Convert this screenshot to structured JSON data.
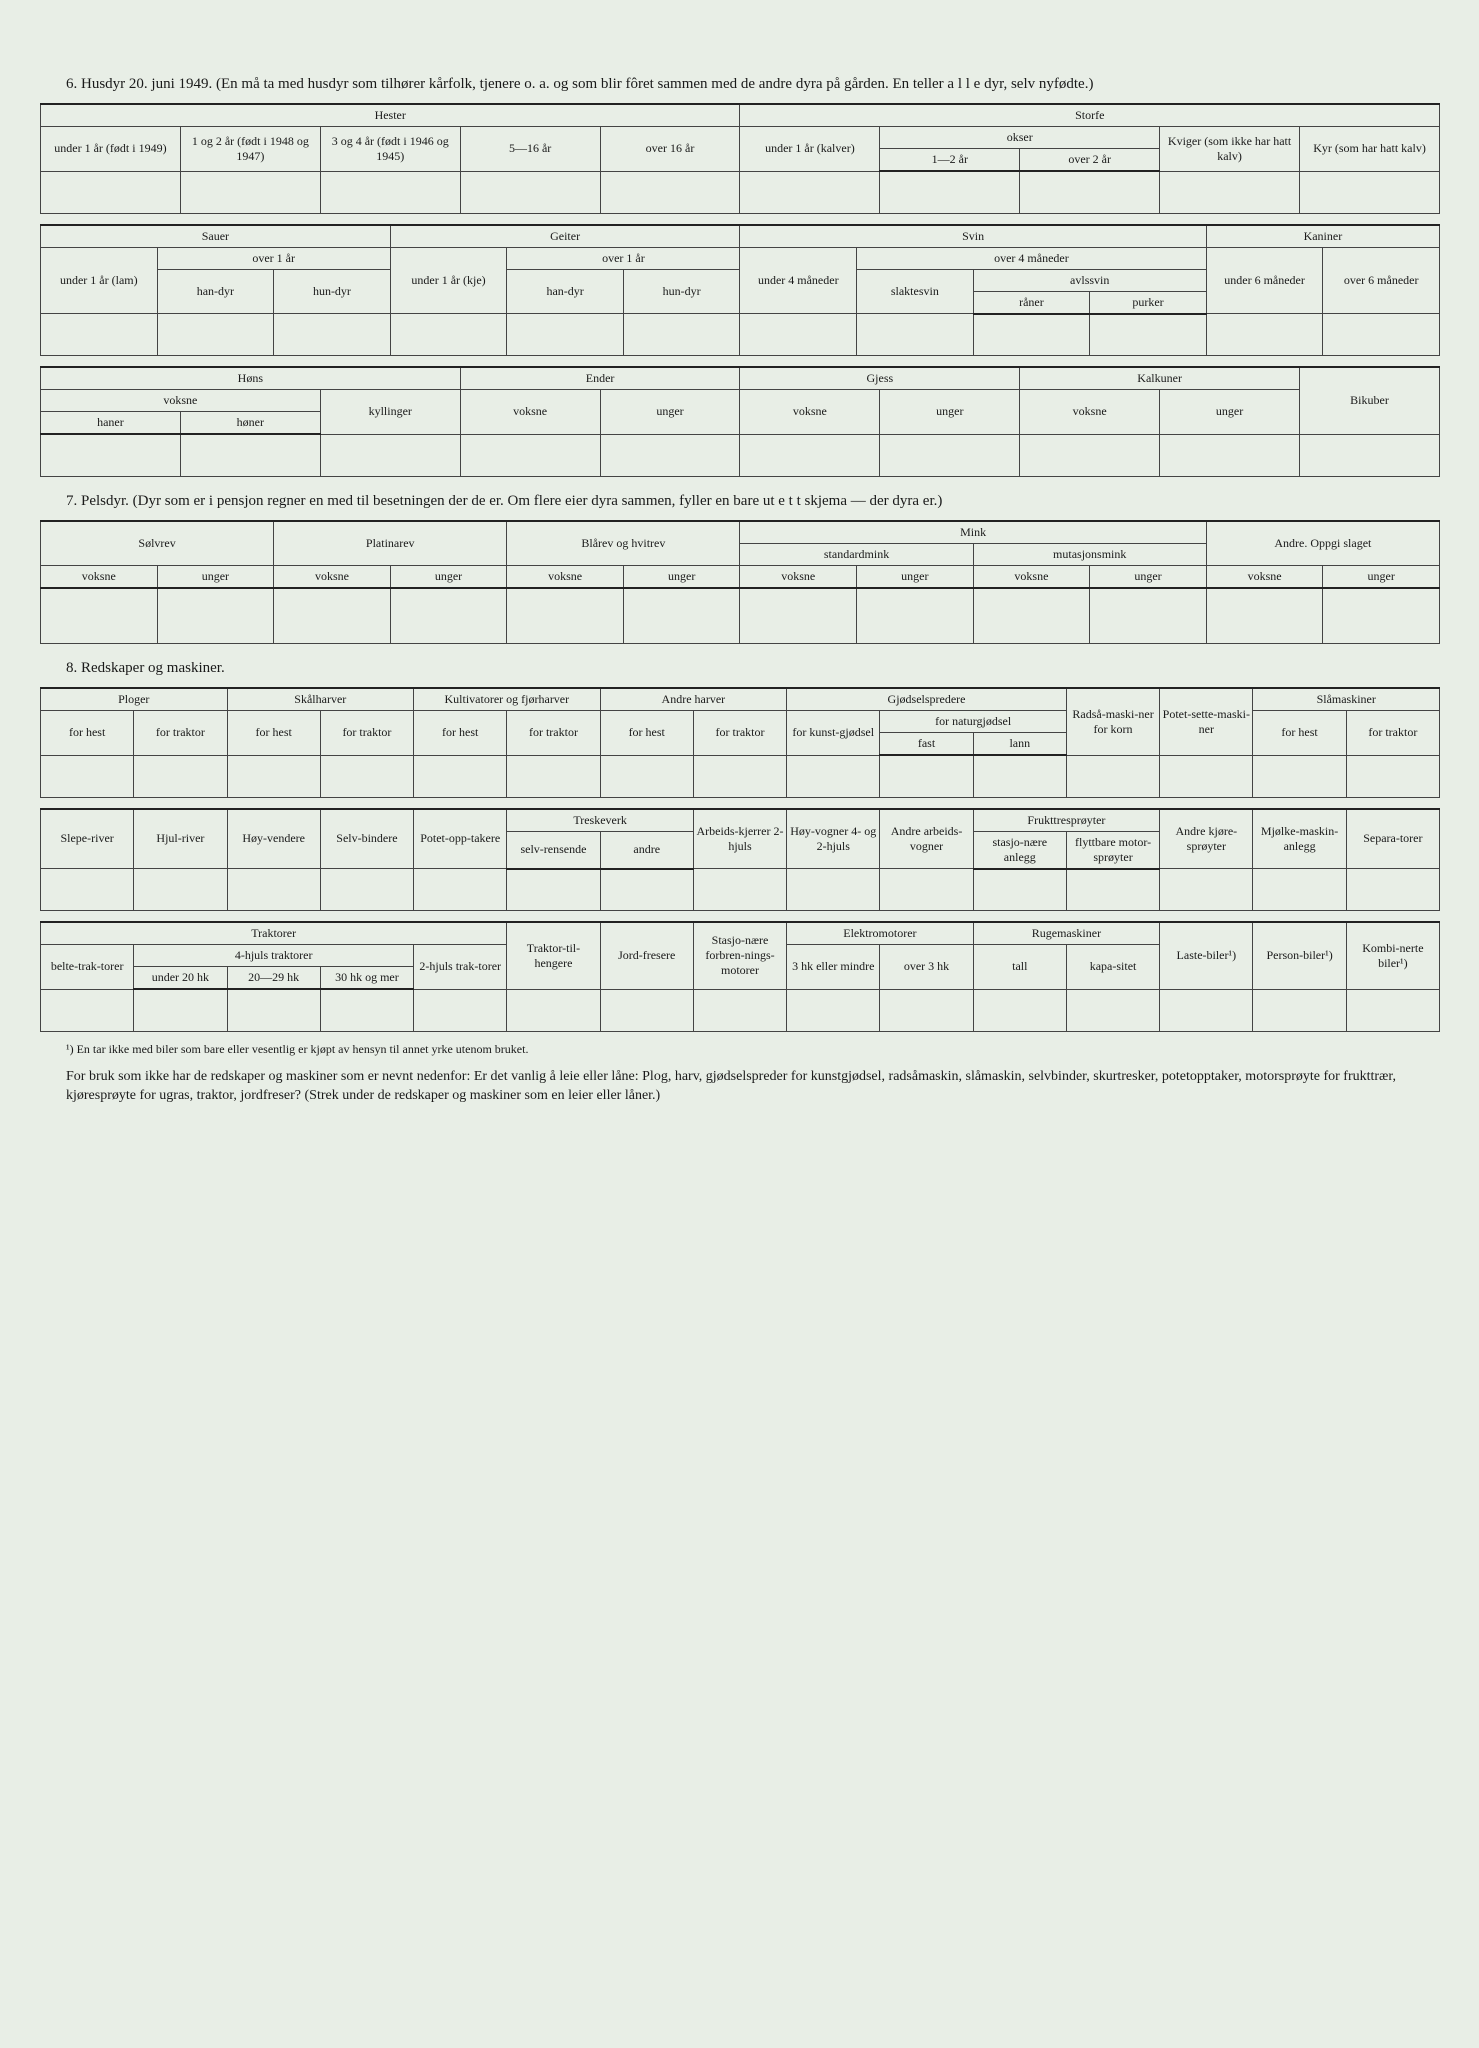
{
  "sec6": {
    "title": "6. Husdyr 20. juni 1949.  (En må ta med husdyr som tilhører kårfolk, tjenere o. a. og som blir fôret sammen med de andre dyra på gården.   En teller a l l e dyr, selv nyfødte.)",
    "t1": {
      "hester": "Hester",
      "storfe": "Storfe",
      "h1": "under 1 år (født i 1949)",
      "h2": "1 og 2 år (født i 1948 og 1947)",
      "h3": "3 og 4 år (født i 1946 og 1945)",
      "h4": "5—16 år",
      "h5": "over 16 år",
      "s1": "under 1 år (kalver)",
      "okser": "okser",
      "s2": "1—2 år",
      "s3": "over 2 år",
      "s4": "Kviger (som ikke har hatt kalv)",
      "s5": "Kyr (som har hatt kalv)"
    },
    "t2": {
      "sauer": "Sauer",
      "geiter": "Geiter",
      "svin": "Svin",
      "kaniner": "Kaniner",
      "sa1": "under 1 år (lam)",
      "over1": "over 1 år",
      "handyr": "han-dyr",
      "hundyr": "hun-dyr",
      "ge1": "under 1 år (kje)",
      "sv1": "under 4 måneder",
      "over4m": "over 4 måneder",
      "slaktesvin": "slaktesvin",
      "avlssvin": "avlssvin",
      "raner": "råner",
      "purker": "purker",
      "ka1": "under 6 måneder",
      "ka2": "over 6 måneder"
    },
    "t3": {
      "hons": "Høns",
      "ender": "Ender",
      "gjess": "Gjess",
      "kalkuner": "Kalkuner",
      "bikuber": "Bikuber",
      "voksne": "voksne",
      "unger": "unger",
      "haner": "haner",
      "honer": "høner",
      "kyllinger": "kyllinger"
    }
  },
  "sec7": {
    "title": "7. Pelsdyr.  (Dyr som er i pensjon regner en med til besetningen der de er.   Om flere eier dyra sammen, fyller en bare ut e t t skjema — der dyra er.)",
    "solvrev": "Sølvrev",
    "platinarev": "Platinarev",
    "blarev": "Blårev og hvitrev",
    "mink": "Mink",
    "standardmink": "standardmink",
    "mutasjonsmink": "mutasjonsmink",
    "andre": "Andre. Oppgi slaget",
    "voksne": "voksne",
    "unger": "unger"
  },
  "sec8": {
    "title": "8. Redskaper og maskiner.",
    "t1": {
      "ploger": "Ploger",
      "skalharver": "Skålharver",
      "kultivatorer": "Kultivatorer og fjørharver",
      "andreharver": "Andre harver",
      "gjodsel": "Gjødselspredere",
      "radsamaskiner": "Radså-maski-ner for korn",
      "potetsette": "Potet-sette-maski-ner",
      "slamaskiner": "Slåmaskiner",
      "forhest": "for hest",
      "fortraktor": "for traktor",
      "forkunst": "for kunst-gjødsel",
      "fornatur": "for naturgjødsel",
      "fast": "fast",
      "lann": "lann"
    },
    "t2": {
      "sleperiver": "Slepe-river",
      "hjulriver": "Hjul-river",
      "hoyvendere": "Høy-vendere",
      "selvbindere": "Selv-bindere",
      "potetopp": "Potet-opp-takere",
      "treskeverk": "Treskeverk",
      "selvrensende": "selv-rensende",
      "andre": "andre",
      "arbeidskjerrer": "Arbeids-kjerrer 2-hjuls",
      "hoyvogner": "Høy-vogner 4- og 2-hjuls",
      "andrearbeids": "Andre arbeids-vogner",
      "frukttre": "Frukttresprøyter",
      "stasjonare": "stasjo-nære anlegg",
      "flyttbare": "flyttbare motor-sprøyter",
      "andrekjore": "Andre kjøre-sprøyter",
      "mjolke": "Mjølke-maskin-anlegg",
      "separatorer": "Separa-torer"
    },
    "t3": {
      "traktorer": "Traktorer",
      "belte": "belte-trak-torer",
      "hjuls4": "4-hjuls traktorer",
      "u20": "under 20 hk",
      "hk2029": "20—29 hk",
      "hk30": "30 hk og mer",
      "hjuls2": "2-hjuls trak-torer",
      "tilhengere": "Traktor-til-hengere",
      "jordfresere": "Jord-fresere",
      "stasjonare": "Stasjo-nære forbren-nings-motorer",
      "elektro": "Elektromotorer",
      "hk3eller": "3 hk eller mindre",
      "over3": "over 3 hk",
      "rugemaskiner": "Rugemaskiner",
      "tall": "tall",
      "kapasitet": "kapa-sitet",
      "lastebiler": "Laste-biler¹)",
      "personbiler": "Person-biler¹)",
      "kombinerte": "Kombi-nerte biler¹)"
    }
  },
  "footnote": "¹) En tar ikke med biler som bare eller vesentlig er kjøpt av hensyn til annet yrke utenom bruket.",
  "para": "For bruk som ikke har de redskaper og maskiner som er nevnt nedenfor:  Er det vanlig å leie eller låne:  Plog, harv, gjødselspreder for kunstgjødsel, radsåmaskin, slåmaskin, selvbinder, skurtresker, potetopptaker, motorsprøyte for frukttrær, kjøresprøyte for ugras, traktor, jordfreser? (Strek under de redskaper og maskiner som en leier eller låner.)"
}
